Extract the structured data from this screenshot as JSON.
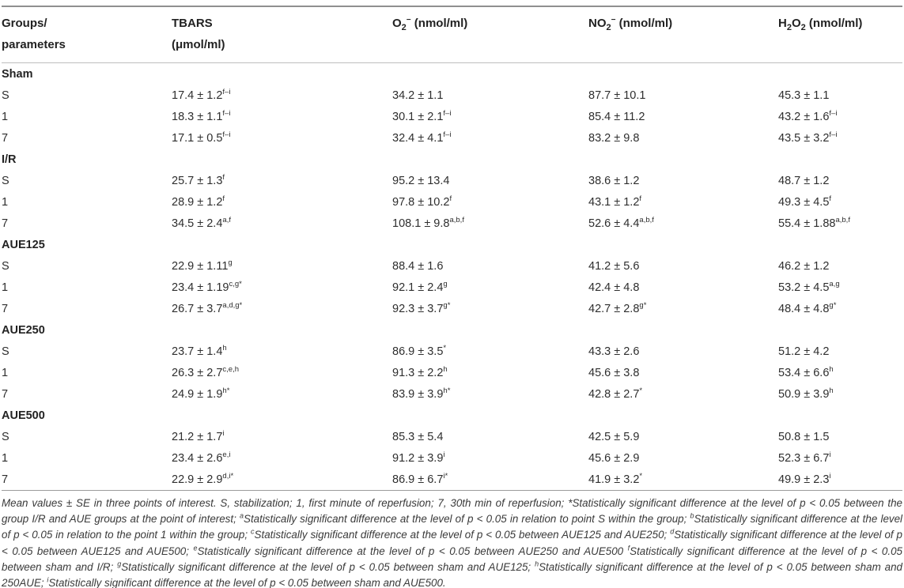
{
  "table": {
    "columns": [
      {
        "name": "groups-parameters",
        "lines": [
          [
            {
              "t": "Groups/"
            }
          ],
          [
            {
              "t": "parameters"
            }
          ]
        ]
      },
      {
        "name": "tbars",
        "lines": [
          [
            {
              "t": "TBARS"
            }
          ],
          [
            {
              "t": "(μmol/ml)"
            }
          ]
        ]
      },
      {
        "name": "superoxide",
        "lines": [
          [
            {
              "t": "O"
            },
            {
              "sub": "2"
            },
            {
              "sup": "−"
            },
            {
              "t": " (nmol/ml)"
            }
          ]
        ]
      },
      {
        "name": "nitrite",
        "lines": [
          [
            {
              "t": "NO"
            },
            {
              "sub": "2"
            },
            {
              "sup": "−"
            },
            {
              "t": " (nmol/ml)"
            }
          ]
        ]
      },
      {
        "name": "hydrogen-peroxide",
        "lines": [
          [
            {
              "t": "H"
            },
            {
              "sub": "2"
            },
            {
              "t": "O"
            },
            {
              "sub": "2"
            },
            {
              "t": " (nmol/ml)"
            }
          ]
        ]
      }
    ],
    "groups": [
      {
        "name": "Sham",
        "rows": [
          {
            "label": "S",
            "cells": [
              {
                "v": "17.4 ± 1.2",
                "s": "f–i"
              },
              {
                "v": "34.2 ± 1.1",
                "s": ""
              },
              {
                "v": "87.7 ± 10.1",
                "s": ""
              },
              {
                "v": "45.3 ± 1.1",
                "s": ""
              }
            ]
          },
          {
            "label": "1",
            "cells": [
              {
                "v": "18.3 ± 1.1",
                "s": "f–i"
              },
              {
                "v": "30.1 ± 2.1",
                "s": "f–i"
              },
              {
                "v": "85.4 ± 11.2",
                "s": ""
              },
              {
                "v": "43.2 ± 1.6",
                "s": "f–i"
              }
            ]
          },
          {
            "label": "7",
            "cells": [
              {
                "v": "17.1 ± 0.5",
                "s": "f–i"
              },
              {
                "v": "32.4 ± 4.1",
                "s": "f–i"
              },
              {
                "v": "83.2 ± 9.8",
                "s": ""
              },
              {
                "v": "43.5 ± 3.2",
                "s": "f–i"
              }
            ]
          }
        ]
      },
      {
        "name": "I/R",
        "rows": [
          {
            "label": "S",
            "cells": [
              {
                "v": "25.7 ± 1.3",
                "s": "f"
              },
              {
                "v": "95.2 ± 13.4",
                "s": ""
              },
              {
                "v": "38.6 ± 1.2",
                "s": ""
              },
              {
                "v": "48.7 ± 1.2",
                "s": ""
              }
            ]
          },
          {
            "label": "1",
            "cells": [
              {
                "v": "28.9 ± 1.2",
                "s": "f"
              },
              {
                "v": "97.8 ± 10.2",
                "s": "f"
              },
              {
                "v": "43.1 ± 1.2",
                "s": "f"
              },
              {
                "v": "49.3 ± 4.5",
                "s": "f"
              }
            ]
          },
          {
            "label": "7",
            "cells": [
              {
                "v": "34.5 ± 2.4",
                "s": "a,f"
              },
              {
                "v": "108.1 ± 9.8",
                "s": "a,b,f"
              },
              {
                "v": "52.6 ± 4.4",
                "s": "a,b,f"
              },
              {
                "v": "55.4 ± 1.88",
                "s": "a,b,f"
              }
            ]
          }
        ]
      },
      {
        "name": "AUE125",
        "rows": [
          {
            "label": "S",
            "cells": [
              {
                "v": "22.9 ± 1.11",
                "s": "g"
              },
              {
                "v": "88.4 ± 1.6",
                "s": ""
              },
              {
                "v": "41.2 ± 5.6",
                "s": ""
              },
              {
                "v": "46.2 ± 1.2",
                "s": ""
              }
            ]
          },
          {
            "label": "1",
            "cells": [
              {
                "v": "23.4 ± 1.19",
                "s": "c,g*"
              },
              {
                "v": "92.1 ± 2.4",
                "s": "g"
              },
              {
                "v": "42.4 ± 4.8",
                "s": ""
              },
              {
                "v": "53.2 ± 4.5",
                "s": "a,g"
              }
            ]
          },
          {
            "label": "7",
            "cells": [
              {
                "v": "26.7 ± 3.7",
                "s": "a,d,g*"
              },
              {
                "v": "92.3 ± 3.7",
                "s": "g*"
              },
              {
                "v": "42.7 ± 2.8",
                "s": "g*"
              },
              {
                "v": "48.4 ± 4.8",
                "s": "g*"
              }
            ]
          }
        ]
      },
      {
        "name": "AUE250",
        "rows": [
          {
            "label": "S",
            "cells": [
              {
                "v": "23.7 ± 1.4",
                "s": "h"
              },
              {
                "v": "86.9 ± 3.5",
                "s": "*"
              },
              {
                "v": "43.3 ± 2.6",
                "s": ""
              },
              {
                "v": "51.2 ± 4.2",
                "s": ""
              }
            ]
          },
          {
            "label": "1",
            "cells": [
              {
                "v": "26.3 ± 2.7",
                "s": "c,e,h"
              },
              {
                "v": "91.3 ± 2.2",
                "s": "h"
              },
              {
                "v": "45.6 ± 3.8",
                "s": ""
              },
              {
                "v": "53.4 ± 6.6",
                "s": "h"
              }
            ]
          },
          {
            "label": "7",
            "cells": [
              {
                "v": "24.9 ± 1.9",
                "s": "h*"
              },
              {
                "v": "83.9 ± 3.9",
                "s": "h*"
              },
              {
                "v": "42.8 ± 2.7",
                "s": "*"
              },
              {
                "v": "50.9 ± 3.9",
                "s": "h"
              }
            ]
          }
        ]
      },
      {
        "name": "AUE500",
        "rows": [
          {
            "label": "S",
            "cells": [
              {
                "v": "21.2 ± 1.7",
                "s": "i"
              },
              {
                "v": "85.3 ± 5.4",
                "s": ""
              },
              {
                "v": "42.5 ± 5.9",
                "s": ""
              },
              {
                "v": "50.8 ± 1.5",
                "s": ""
              }
            ]
          },
          {
            "label": "1",
            "cells": [
              {
                "v": "23.4 ± 2.6",
                "s": "e,i"
              },
              {
                "v": "91.2 ± 3.9",
                "s": "i"
              },
              {
                "v": "45.6 ± 2.9",
                "s": ""
              },
              {
                "v": "52.3 ± 6.7",
                "s": "i"
              }
            ]
          },
          {
            "label": "7",
            "cells": [
              {
                "v": "22.9 ± 2.9",
                "s": "d,i*"
              },
              {
                "v": "86.9 ± 6.7",
                "s": "i*"
              },
              {
                "v": "41.9 ± 3.2",
                "s": "*"
              },
              {
                "v": "49.9 ± 2.3",
                "s": "i"
              }
            ]
          }
        ]
      }
    ]
  },
  "footnote": {
    "segments": [
      {
        "t": "Mean values ± SE in three points of interest. S, stabilization; 1, first minute of reperfusion; 7, 30th min of reperfusion; *Statistically significant difference at the level of p < 0.05 between the group I/R and AUE groups at the point of interest; "
      },
      {
        "sup": "a"
      },
      {
        "t": "Statistically significant difference at the level of p < 0.05 in relation to point S within the group; "
      },
      {
        "sup": "b"
      },
      {
        "t": "Statistically significant difference at the level of p < 0.05 in relation to the point 1 within the group; "
      },
      {
        "sup": "c"
      },
      {
        "t": "Statistically significant difference at the level of p < 0.05 between AUE125 and AUE250; "
      },
      {
        "sup": "d"
      },
      {
        "t": "Statistically significant difference at the level of p < 0.05 between AUE125 and AUE500; "
      },
      {
        "sup": "e"
      },
      {
        "t": "Statistically significant difference at the level of p < 0.05 between AUE250 and AUE500 "
      },
      {
        "sup": "f"
      },
      {
        "t": "Statistically significant difference at the level of p < 0.05 between sham and I/R; "
      },
      {
        "sup": "g"
      },
      {
        "t": "Statistically significant difference at the level of p < 0.05 between sham and AUE125; "
      },
      {
        "sup": "h"
      },
      {
        "t": "Statistically significant difference at the level of p < 0.05 between sham and 250AUE; "
      },
      {
        "sup": "i"
      },
      {
        "t": "Statistically significant difference at the level of p < 0.05 between sham and AUE500."
      }
    ]
  }
}
